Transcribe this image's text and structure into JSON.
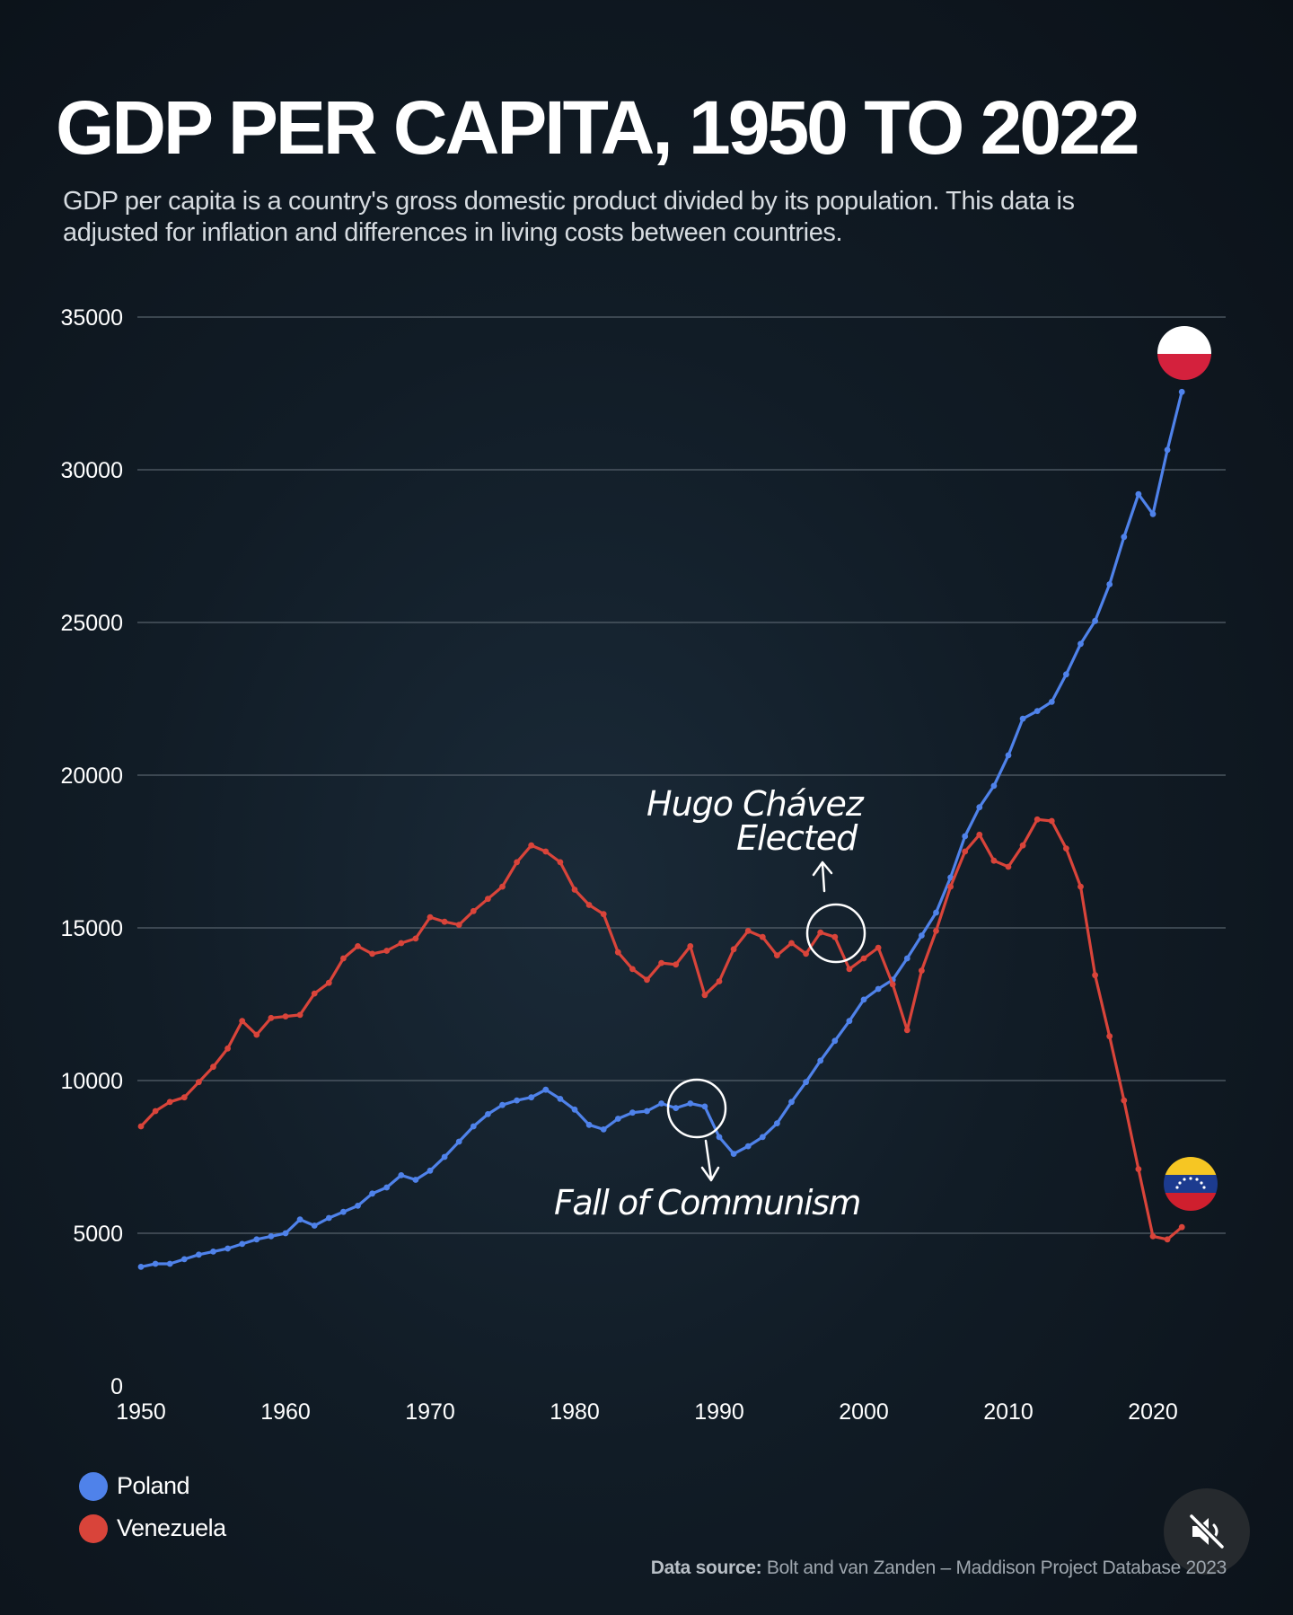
{
  "title": "GDP PER CAPITA, 1950 TO 2022",
  "subtitle": "GDP per capita is a country's gross domestic product divided by its population. This data is adjusted for inflation and differences in living costs between countries.",
  "source": {
    "label": "Data source:",
    "text": "Bolt and van Zanden – Maddison Project Database 2023"
  },
  "legend": [
    {
      "name": "Poland",
      "color": "#4f82ea"
    },
    {
      "name": "Venezuela",
      "color": "#d9443a"
    }
  ],
  "annotations": {
    "chavez_line1": "Hugo Chávez",
    "chavez_line2": "Elected",
    "communism": "Fall of Communism"
  },
  "colors": {
    "poland": "#4f82ea",
    "venezuela": "#d9443a",
    "grid": "#56616b",
    "axis_text": "#ffffff"
  },
  "chart_data": {
    "type": "line",
    "title": "GDP PER CAPITA, 1950 TO 2022",
    "xlabel": "",
    "ylabel": "",
    "xlim": [
      1950,
      2025
    ],
    "ylim": [
      0,
      35000
    ],
    "x_ticks": [
      1950,
      1960,
      1970,
      1980,
      1990,
      2000,
      2010,
      2020
    ],
    "y_ticks": [
      0,
      5000,
      10000,
      15000,
      20000,
      25000,
      30000,
      35000
    ],
    "grid": true,
    "legend_position": "bottom-left",
    "x": [
      1950,
      1951,
      1952,
      1953,
      1954,
      1955,
      1956,
      1957,
      1958,
      1959,
      1960,
      1961,
      1962,
      1963,
      1964,
      1965,
      1966,
      1967,
      1968,
      1969,
      1970,
      1971,
      1972,
      1973,
      1974,
      1975,
      1976,
      1977,
      1978,
      1979,
      1980,
      1981,
      1982,
      1983,
      1984,
      1985,
      1986,
      1987,
      1988,
      1989,
      1990,
      1991,
      1992,
      1993,
      1994,
      1995,
      1996,
      1997,
      1998,
      1999,
      2000,
      2001,
      2002,
      2003,
      2004,
      2005,
      2006,
      2007,
      2008,
      2009,
      2010,
      2011,
      2012,
      2013,
      2014,
      2015,
      2016,
      2017,
      2018,
      2019,
      2020,
      2021,
      2022
    ],
    "series": [
      {
        "name": "Poland",
        "values": [
          3900,
          4000,
          4000,
          4150,
          4300,
          4400,
          4500,
          4650,
          4800,
          4900,
          5000,
          5450,
          5250,
          5500,
          5700,
          5900,
          6300,
          6500,
          6900,
          6750,
          7050,
          7500,
          8000,
          8500,
          8900,
          9200,
          9350,
          9450,
          9700,
          9400,
          9050,
          8550,
          8400,
          8750,
          8950,
          9000,
          9250,
          9100,
          9250,
          9150,
          8150,
          7600,
          7850,
          8150,
          8600,
          9300,
          9950,
          10650,
          11300,
          11950,
          12650,
          13000,
          13300,
          14000,
          14750,
          15500,
          16650,
          18000,
          18950,
          19650,
          20650,
          21850,
          22100,
          22400,
          23300,
          24300,
          25050,
          26250,
          27800,
          29200,
          28550,
          30650,
          32550
        ]
      },
      {
        "name": "Venezuela",
        "values": [
          8500,
          9000,
          9300,
          9450,
          9950,
          10450,
          11050,
          11950,
          11500,
          12050,
          12100,
          12150,
          12850,
          13200,
          14000,
          14400,
          14150,
          14250,
          14500,
          14650,
          15350,
          15200,
          15100,
          15550,
          15950,
          16350,
          17150,
          17700,
          17500,
          17150,
          16250,
          15750,
          15450,
          14200,
          13650,
          13300,
          13850,
          13800,
          14400,
          12800,
          13250,
          14300,
          14900,
          14700,
          14100,
          14500,
          14150,
          14850,
          14700,
          13650,
          14000,
          14350,
          13150,
          11650,
          13600,
          14900,
          16350,
          17500,
          18050,
          17200,
          17000,
          17700,
          18550,
          18500,
          17600,
          16350,
          13450,
          11450,
          9350,
          7100,
          4900,
          4800,
          5200
        ]
      }
    ]
  }
}
